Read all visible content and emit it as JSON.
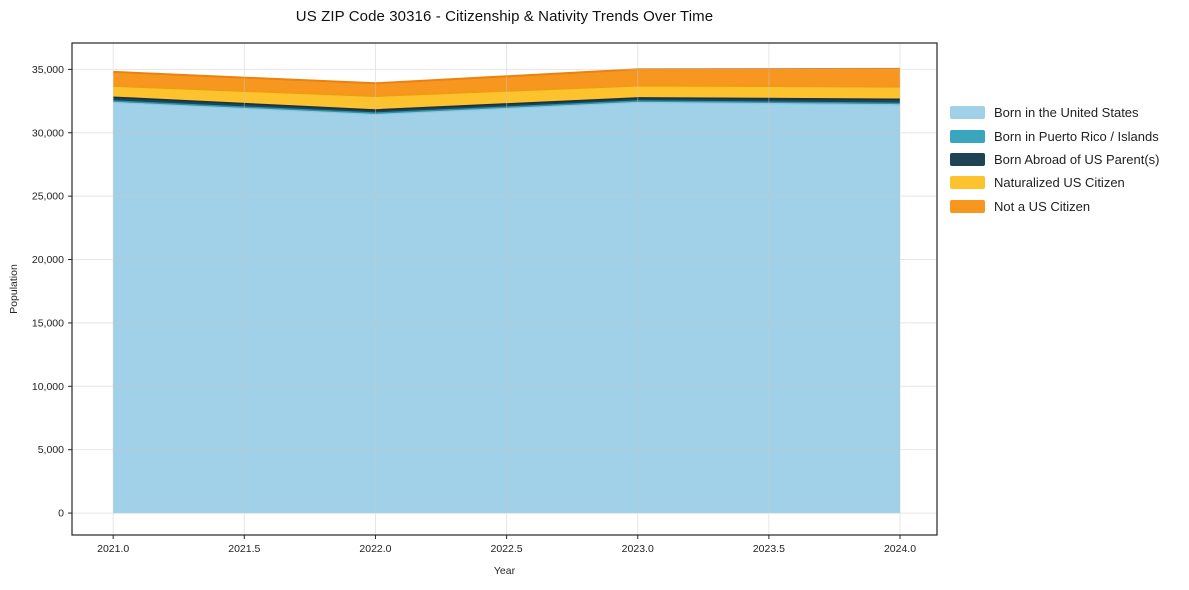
{
  "chart_data": {
    "type": "area",
    "stacked": true,
    "title": "US ZIP Code 30316 - Citizenship & Nativity Trends Over Time",
    "xlabel": "Year",
    "ylabel": "Population",
    "x": [
      2021,
      2022,
      2023,
      2024
    ],
    "series": [
      {
        "name": "Born in the United States",
        "values": [
          32400,
          31450,
          32400,
          32200
        ],
        "fill": "#a1d1e8",
        "line": "#8fc6e0",
        "line_width": 1.5
      },
      {
        "name": "Born in Puerto Rico / Islands",
        "values": [
          100,
          100,
          100,
          120
        ],
        "fill": "#3aa6bd",
        "line": "#2d93a9",
        "line_width": 1.5
      },
      {
        "name": "Born Abroad of US Parent(s)",
        "values": [
          300,
          250,
          250,
          320
        ],
        "fill": "#1e4355",
        "line": "#16323f",
        "line_width": 1.5
      },
      {
        "name": "Naturalized US Citizen",
        "values": [
          900,
          1100,
          975,
          1000
        ],
        "fill": "#fcc32e",
        "line": "#f09b12",
        "line_width": 2
      },
      {
        "name": "Not a US Citizen",
        "values": [
          1100,
          1000,
          1280,
          1400
        ],
        "fill": "#f8971f",
        "line": "#ea820e",
        "line_width": 2
      }
    ],
    "totals": [
      34800,
      33900,
      35005,
      35040
    ],
    "xlim": [
      2020.843,
      2024.141
    ],
    "ylim": [
      -1730,
      37080
    ],
    "x_ticks": {
      "values": [
        2021.0,
        2021.5,
        2022.0,
        2022.5,
        2023.0,
        2023.5,
        2024.0
      ],
      "labels": [
        "2021.0",
        "2021.5",
        "2022.0",
        "2022.5",
        "2023.0",
        "2023.5",
        "2024.0"
      ]
    },
    "y_ticks": {
      "values": [
        0,
        5000,
        10000,
        15000,
        20000,
        25000,
        30000,
        35000
      ],
      "labels": [
        "0",
        "5,000",
        "10,000",
        "15,000",
        "20,000",
        "25,000",
        "30,000",
        "35,000"
      ]
    },
    "grid": true,
    "grid_color": "#c8c8c8",
    "axis_color": "#262626",
    "tick_label_color": "#222222",
    "legend_position": "outside-right-top"
  }
}
